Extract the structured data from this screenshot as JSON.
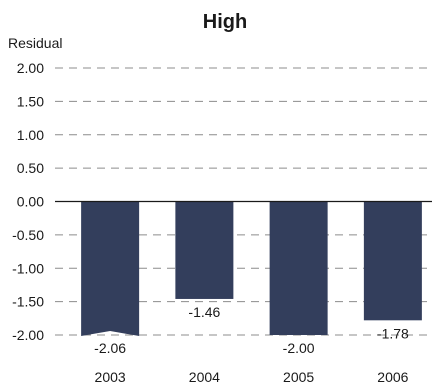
{
  "chart_data": {
    "type": "bar",
    "title": "High",
    "ylabel": "Residual",
    "xlabel": "",
    "categories": [
      "2003",
      "2004",
      "2005",
      "2006"
    ],
    "values": [
      -2.06,
      -1.46,
      -2.0,
      -1.78
    ],
    "value_labels": [
      "-2.06",
      "-1.46",
      "-2.00",
      "-1.78"
    ],
    "ylim": [
      -2.0,
      2.0
    ],
    "yticks": [
      2.0,
      1.5,
      1.0,
      0.5,
      0.0,
      -0.5,
      -1.0,
      -1.5,
      -2.0
    ],
    "ytick_labels": [
      "2.00",
      "1.50",
      "1.00",
      "0.50",
      "0.00",
      "-0.50",
      "-1.00",
      "-1.50",
      "-2.00"
    ],
    "grid": true,
    "grid_style": "dashed",
    "bar_color": "#333e5c",
    "grid_color": "#8c8c8c",
    "axis_color": "#1a1a1a"
  }
}
